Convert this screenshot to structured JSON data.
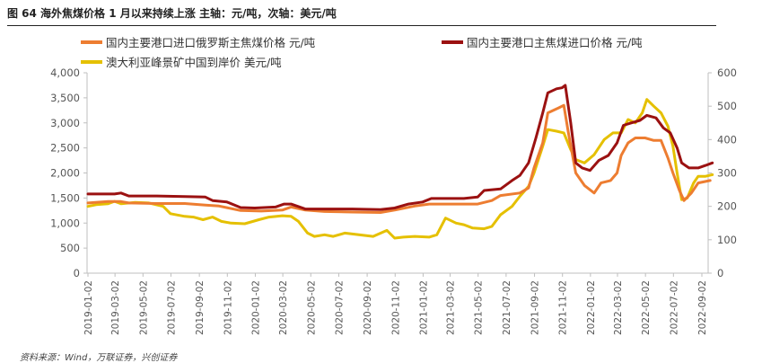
{
  "figure": {
    "title": "图 64 海外焦煤价格 1 月以来持续上涨  主轴：元/吨，次轴：美元/吨",
    "source": "资料来源：Wind，万联证券，兴创证券"
  },
  "colors": {
    "russia": "#ed7d31",
    "main_import": "#9b1111",
    "australia": "#e5c000",
    "axis": "#bfbfbf",
    "tick_text": "#555555"
  },
  "chart_data": {
    "type": "line",
    "title": "",
    "legend_position": "top",
    "grid": false,
    "x_ticks": [
      "2019-01-02",
      "2019-03-02",
      "2019-05-02",
      "2019-07-02",
      "2019-09-02",
      "2019-11-02",
      "2020-01-02",
      "2020-03-02",
      "2020-05-02",
      "2020-07-02",
      "2020-09-02",
      "2020-11-02",
      "2021-01-02",
      "2021-03-02",
      "2021-05-02",
      "2021-07-02",
      "2021-09-02",
      "2021-11-02",
      "2022-01-02",
      "2022-03-02",
      "2022-05-02",
      "2022-07-02",
      "2022-09-02"
    ],
    "y_left": {
      "min": 0,
      "max": 4000,
      "ticks": [
        "0",
        "500",
        "1,000",
        "1,500",
        "2,000",
        "2,500",
        "3,000",
        "3,500",
        "4,000"
      ]
    },
    "y_right": {
      "min": 0,
      "max": 600,
      "ticks": [
        "0",
        "100",
        "200",
        "300",
        "400",
        "500",
        "600"
      ]
    },
    "series": [
      {
        "name": "国内主要港口进口俄罗斯主焦煤价格 元/吨",
        "axis": "left",
        "color_key": "russia",
        "points": [
          [
            "2019-01-02",
            1400
          ],
          [
            "2019-02-15",
            1430
          ],
          [
            "2019-03-15",
            1430
          ],
          [
            "2019-04-01",
            1400
          ],
          [
            "2019-06-01",
            1390
          ],
          [
            "2019-08-01",
            1390
          ],
          [
            "2019-09-15",
            1360
          ],
          [
            "2019-10-15",
            1340
          ],
          [
            "2019-12-01",
            1250
          ],
          [
            "2020-01-15",
            1240
          ],
          [
            "2020-03-01",
            1260
          ],
          [
            "2020-03-20",
            1320
          ],
          [
            "2020-04-20",
            1260
          ],
          [
            "2020-06-01",
            1230
          ],
          [
            "2020-08-01",
            1220
          ],
          [
            "2020-10-01",
            1210
          ],
          [
            "2020-11-01",
            1260
          ],
          [
            "2020-12-15",
            1340
          ],
          [
            "2021-01-15",
            1380
          ],
          [
            "2021-03-01",
            1380
          ],
          [
            "2021-05-01",
            1380
          ],
          [
            "2021-06-01",
            1450
          ],
          [
            "2021-06-20",
            1550
          ],
          [
            "2021-08-01",
            1600
          ],
          [
            "2021-08-20",
            1700
          ],
          [
            "2021-09-01",
            2100
          ],
          [
            "2021-09-20",
            2600
          ],
          [
            "2021-10-01",
            3200
          ],
          [
            "2021-10-25",
            3300
          ],
          [
            "2021-11-05",
            3350
          ],
          [
            "2021-11-15",
            2800
          ],
          [
            "2021-12-01",
            2000
          ],
          [
            "2021-12-20",
            1750
          ],
          [
            "2022-01-10",
            1600
          ],
          [
            "2022-01-25",
            1800
          ],
          [
            "2022-02-15",
            1850
          ],
          [
            "2022-03-01",
            2000
          ],
          [
            "2022-03-10",
            2350
          ],
          [
            "2022-03-25",
            2600
          ],
          [
            "2022-04-10",
            2700
          ],
          [
            "2022-05-01",
            2700
          ],
          [
            "2022-05-20",
            2650
          ],
          [
            "2022-06-05",
            2650
          ],
          [
            "2022-06-20",
            2300
          ],
          [
            "2022-07-01",
            2000
          ],
          [
            "2022-07-15",
            1650
          ],
          [
            "2022-07-25",
            1450
          ],
          [
            "2022-08-10",
            1600
          ],
          [
            "2022-08-25",
            1800
          ],
          [
            "2022-09-20",
            1850
          ]
        ]
      },
      {
        "name": "国内主要港口主焦煤进口价格 元/吨",
        "axis": "left",
        "color_key": "main_import",
        "points": [
          [
            "2019-01-02",
            1580
          ],
          [
            "2019-02-15",
            1580
          ],
          [
            "2019-03-01",
            1580
          ],
          [
            "2019-03-15",
            1600
          ],
          [
            "2019-04-01",
            1540
          ],
          [
            "2019-06-01",
            1540
          ],
          [
            "2019-08-01",
            1530
          ],
          [
            "2019-09-15",
            1520
          ],
          [
            "2019-10-01",
            1450
          ],
          [
            "2019-11-01",
            1420
          ],
          [
            "2019-12-01",
            1310
          ],
          [
            "2020-01-01",
            1300
          ],
          [
            "2020-02-15",
            1320
          ],
          [
            "2020-03-05",
            1380
          ],
          [
            "2020-03-20",
            1380
          ],
          [
            "2020-04-20",
            1280
          ],
          [
            "2020-06-01",
            1280
          ],
          [
            "2020-08-01",
            1280
          ],
          [
            "2020-10-01",
            1270
          ],
          [
            "2020-11-01",
            1300
          ],
          [
            "2020-12-01",
            1380
          ],
          [
            "2021-01-01",
            1420
          ],
          [
            "2021-01-20",
            1490
          ],
          [
            "2021-04-01",
            1490
          ],
          [
            "2021-05-01",
            1520
          ],
          [
            "2021-05-15",
            1650
          ],
          [
            "2021-06-20",
            1680
          ],
          [
            "2021-07-15",
            1850
          ],
          [
            "2021-08-01",
            1950
          ],
          [
            "2021-08-20",
            2200
          ],
          [
            "2021-09-05",
            2700
          ],
          [
            "2021-09-20",
            3200
          ],
          [
            "2021-10-01",
            3600
          ],
          [
            "2021-10-20",
            3680
          ],
          [
            "2021-11-01",
            3700
          ],
          [
            "2021-11-08",
            3750
          ],
          [
            "2021-11-20",
            3000
          ],
          [
            "2021-12-01",
            2200
          ],
          [
            "2021-12-15",
            2100
          ],
          [
            "2022-01-01",
            2050
          ],
          [
            "2022-01-20",
            2250
          ],
          [
            "2022-02-10",
            2350
          ],
          [
            "2022-03-01",
            2600
          ],
          [
            "2022-03-15",
            2950
          ],
          [
            "2022-04-01",
            3000
          ],
          [
            "2022-04-20",
            3050
          ],
          [
            "2022-05-05",
            3150
          ],
          [
            "2022-05-25",
            3100
          ],
          [
            "2022-06-10",
            2900
          ],
          [
            "2022-06-25",
            2800
          ],
          [
            "2022-07-10",
            2500
          ],
          [
            "2022-07-20",
            2200
          ],
          [
            "2022-08-05",
            2100
          ],
          [
            "2022-08-25",
            2100
          ],
          [
            "2022-09-10",
            2150
          ],
          [
            "2022-09-25",
            2200
          ]
        ]
      },
      {
        "name": "澳大利亚峰景矿中国到岸价 美元/吨",
        "axis": "right",
        "color_key": "australia",
        "points": [
          [
            "2019-01-02",
            200
          ],
          [
            "2019-01-20",
            205
          ],
          [
            "2019-02-15",
            208
          ],
          [
            "2019-03-01",
            215
          ],
          [
            "2019-03-15",
            208
          ],
          [
            "2019-04-15",
            212
          ],
          [
            "2019-05-15",
            210
          ],
          [
            "2019-06-15",
            200
          ],
          [
            "2019-07-01",
            178
          ],
          [
            "2019-08-01",
            170
          ],
          [
            "2019-08-20",
            168
          ],
          [
            "2019-09-10",
            160
          ],
          [
            "2019-10-01",
            168
          ],
          [
            "2019-10-20",
            155
          ],
          [
            "2019-11-10",
            150
          ],
          [
            "2019-12-10",
            148
          ],
          [
            "2020-01-10",
            160
          ],
          [
            "2020-02-01",
            168
          ],
          [
            "2020-03-01",
            172
          ],
          [
            "2020-03-20",
            170
          ],
          [
            "2020-04-05",
            155
          ],
          [
            "2020-04-25",
            120
          ],
          [
            "2020-05-10",
            110
          ],
          [
            "2020-06-01",
            115
          ],
          [
            "2020-06-20",
            110
          ],
          [
            "2020-07-15",
            120
          ],
          [
            "2020-08-15",
            115
          ],
          [
            "2020-09-15",
            110
          ],
          [
            "2020-10-15",
            128
          ],
          [
            "2020-11-01",
            105
          ],
          [
            "2020-11-20",
            108
          ],
          [
            "2020-12-15",
            110
          ],
          [
            "2021-01-15",
            108
          ],
          [
            "2021-02-01",
            115
          ],
          [
            "2021-02-20",
            165
          ],
          [
            "2021-03-15",
            150
          ],
          [
            "2021-04-01",
            145
          ],
          [
            "2021-04-20",
            135
          ],
          [
            "2021-05-15",
            133
          ],
          [
            "2021-06-01",
            140
          ],
          [
            "2021-06-20",
            175
          ],
          [
            "2021-07-15",
            200
          ],
          [
            "2021-08-01",
            230
          ],
          [
            "2021-08-20",
            260
          ],
          [
            "2021-09-01",
            300
          ],
          [
            "2021-09-20",
            380
          ],
          [
            "2021-10-01",
            430
          ],
          [
            "2021-10-20",
            425
          ],
          [
            "2021-11-05",
            420
          ],
          [
            "2021-11-20",
            370
          ],
          [
            "2021-12-01",
            340
          ],
          [
            "2021-12-20",
            330
          ],
          [
            "2022-01-10",
            355
          ],
          [
            "2022-02-01",
            400
          ],
          [
            "2022-02-20",
            420
          ],
          [
            "2022-03-10",
            420
          ],
          [
            "2022-03-25",
            460
          ],
          [
            "2022-04-10",
            450
          ],
          [
            "2022-04-25",
            480
          ],
          [
            "2022-05-05",
            520
          ],
          [
            "2022-05-20",
            500
          ],
          [
            "2022-06-05",
            480
          ],
          [
            "2022-06-20",
            440
          ],
          [
            "2022-07-01",
            380
          ],
          [
            "2022-07-10",
            300
          ],
          [
            "2022-07-20",
            220
          ],
          [
            "2022-08-01",
            225
          ],
          [
            "2022-08-15",
            270
          ],
          [
            "2022-08-25",
            290
          ],
          [
            "2022-09-10",
            290
          ],
          [
            "2022-09-25",
            295
          ]
        ]
      }
    ]
  }
}
